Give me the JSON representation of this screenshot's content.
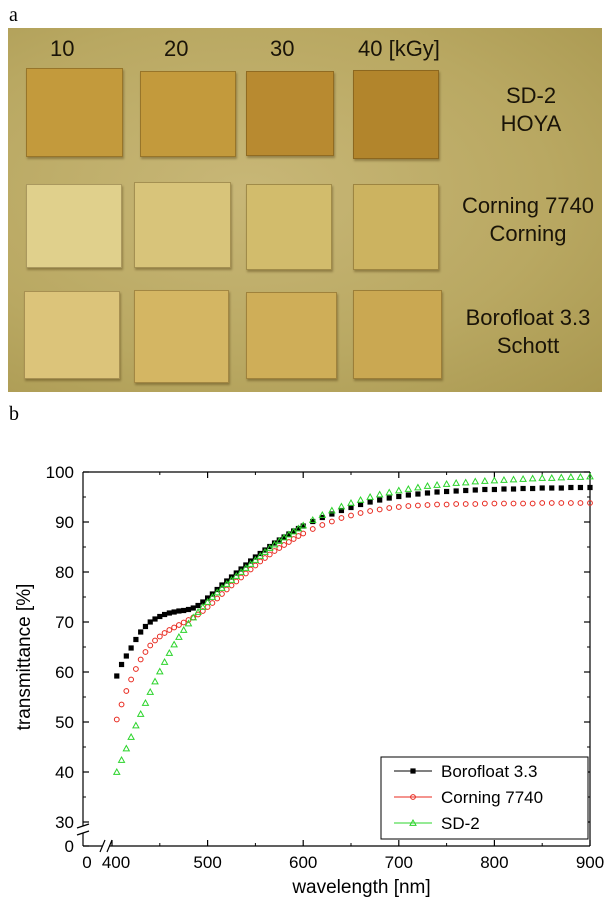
{
  "panel_a": {
    "letter": "a",
    "doses": [
      "10",
      "20",
      "30",
      "40 [kGy]"
    ],
    "labels": [
      {
        "line1": "SD-2",
        "line2": "HOYA"
      },
      {
        "line1": "Corning 7740",
        "line2": "Corning"
      },
      {
        "line1": "Borofloat 3.3",
        "line2": "Schott"
      }
    ]
  },
  "panel_b": {
    "letter": "b"
  },
  "chart_data": {
    "type": "scatter",
    "xlabel": "wavelength [nm]",
    "ylabel": "transmittance [%]",
    "xlim": [
      400,
      900
    ],
    "ylim": [
      30,
      100
    ],
    "xticks": [
      "0",
      "400",
      "500",
      "600",
      "700",
      "800",
      "900"
    ],
    "yticks": [
      "0",
      "30",
      "40",
      "50",
      "60",
      "70",
      "80",
      "90",
      "100"
    ],
    "axis_breaks": true,
    "legend_position": "bottom-right",
    "series": [
      {
        "name": "Borofloat 3.3",
        "color": "#000000",
        "marker": "square",
        "x": [
          405,
          410,
          415,
          420,
          425,
          430,
          435,
          440,
          445,
          450,
          455,
          460,
          465,
          470,
          475,
          480,
          485,
          490,
          495,
          500,
          505,
          510,
          515,
          520,
          525,
          530,
          535,
          540,
          545,
          550,
          555,
          560,
          565,
          570,
          575,
          580,
          585,
          590,
          595,
          600,
          610,
          620,
          630,
          640,
          650,
          660,
          670,
          680,
          690,
          700,
          710,
          720,
          730,
          740,
          750,
          760,
          770,
          780,
          790,
          800,
          810,
          820,
          830,
          840,
          850,
          860,
          870,
          880,
          890,
          900
        ],
        "y": [
          59.2,
          61.5,
          63.2,
          64.8,
          66.5,
          68,
          69.1,
          70,
          70.6,
          71.1,
          71.5,
          71.8,
          72,
          72.2,
          72.3,
          72.5,
          72.8,
          73.3,
          74,
          74.8,
          75.6,
          76.5,
          77.4,
          78.2,
          79,
          79.8,
          80.6,
          81.4,
          82.2,
          83,
          83.7,
          84.4,
          85.1,
          85.8,
          86.4,
          87,
          87.6,
          88.2,
          88.7,
          89.2,
          90.1,
          90.9,
          91.6,
          92.3,
          92.9,
          93.5,
          94,
          94.4,
          94.8,
          95.1,
          95.4,
          95.6,
          95.8,
          96,
          96.1,
          96.2,
          96.3,
          96.4,
          96.5,
          96.5,
          96.6,
          96.6,
          96.7,
          96.7,
          96.8,
          96.8,
          96.8,
          96.9,
          96.9,
          96.9
        ]
      },
      {
        "name": "Corning 7740",
        "color": "#e8281e",
        "marker": "circle",
        "x": [
          405,
          410,
          415,
          420,
          425,
          430,
          435,
          440,
          445,
          450,
          455,
          460,
          465,
          470,
          475,
          480,
          485,
          490,
          495,
          500,
          505,
          510,
          515,
          520,
          525,
          530,
          535,
          540,
          545,
          550,
          555,
          560,
          565,
          570,
          575,
          580,
          585,
          590,
          595,
          600,
          610,
          620,
          630,
          640,
          650,
          660,
          670,
          680,
          690,
          700,
          710,
          720,
          730,
          740,
          750,
          760,
          770,
          780,
          790,
          800,
          810,
          820,
          830,
          840,
          850,
          860,
          870,
          880,
          890,
          900
        ],
        "y": [
          50.5,
          53.5,
          56.2,
          58.5,
          60.6,
          62.5,
          64,
          65.3,
          66.3,
          67.1,
          67.8,
          68.4,
          68.9,
          69.4,
          69.9,
          70.4,
          70.9,
          71.5,
          72.2,
          73,
          73.8,
          74.7,
          75.6,
          76.5,
          77.3,
          78.1,
          78.9,
          79.7,
          80.5,
          81.3,
          82.1,
          82.8,
          83.5,
          84.2,
          84.8,
          85.4,
          86,
          86.6,
          87.2,
          87.7,
          88.6,
          89.4,
          90.1,
          90.8,
          91.3,
          91.8,
          92.2,
          92.5,
          92.8,
          93,
          93.2,
          93.3,
          93.4,
          93.5,
          93.5,
          93.6,
          93.6,
          93.6,
          93.7,
          93.7,
          93.7,
          93.7,
          93.7,
          93.7,
          93.8,
          93.8,
          93.8,
          93.8,
          93.8,
          93.8
        ]
      },
      {
        "name": "SD-2",
        "color": "#2bd42b",
        "marker": "triangle",
        "x": [
          405,
          410,
          415,
          420,
          425,
          430,
          435,
          440,
          445,
          450,
          455,
          460,
          465,
          470,
          475,
          480,
          485,
          490,
          495,
          500,
          505,
          510,
          515,
          520,
          525,
          530,
          535,
          540,
          545,
          550,
          555,
          560,
          565,
          570,
          575,
          580,
          585,
          590,
          595,
          600,
          610,
          620,
          630,
          640,
          650,
          660,
          670,
          680,
          690,
          700,
          710,
          720,
          730,
          740,
          750,
          760,
          770,
          780,
          790,
          800,
          810,
          820,
          830,
          840,
          850,
          860,
          870,
          880,
          890,
          900
        ],
        "y": [
          40,
          42.4,
          44.7,
          47,
          49.3,
          51.6,
          53.8,
          56,
          58.1,
          60.1,
          62,
          63.8,
          65.5,
          67,
          68.4,
          69.7,
          70.9,
          72,
          73,
          74,
          75,
          75.9,
          76.8,
          77.6,
          78.4,
          79.2,
          80,
          80.8,
          81.6,
          82.4,
          83.2,
          84,
          84.8,
          85.5,
          86.2,
          86.9,
          87.5,
          88.1,
          88.7,
          89.3,
          90.4,
          91.4,
          92.3,
          93.1,
          93.8,
          94.4,
          95,
          95.5,
          95.9,
          96.3,
          96.6,
          96.9,
          97.2,
          97.4,
          97.6,
          97.8,
          97.9,
          98.1,
          98.2,
          98.3,
          98.4,
          98.5,
          98.6,
          98.7,
          98.8,
          98.8,
          98.9,
          99,
          99,
          99.1
        ]
      }
    ]
  }
}
